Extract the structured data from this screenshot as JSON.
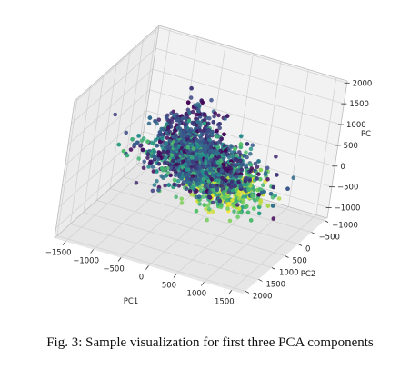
{
  "caption": "Fig. 3: Sample visualization for first three PCA components",
  "chart_data": {
    "type": "scatter",
    "projection": "3d",
    "title": "",
    "xlabel": "PC1",
    "ylabel": "PC2",
    "zlabel": "PC",
    "xlim": [
      -1700,
      1700
    ],
    "ylim": [
      -1100,
      2100
    ],
    "zlim": [
      -1250,
      2050
    ],
    "xticks": [
      -1500,
      -1000,
      -500,
      0,
      500,
      1000,
      1500
    ],
    "yticks": [
      -1000,
      -500,
      0,
      500,
      1000,
      1500,
      2000
    ],
    "zticks": [
      -1000,
      -500,
      0,
      500,
      1000,
      1500,
      2000
    ],
    "xtick_labels": [
      "−1500",
      "−1000",
      "−500",
      "0",
      "500",
      "1000",
      "1500"
    ],
    "ytick_labels": [
      "−1000",
      "−500",
      "0",
      "500",
      "1000",
      "1500",
      "2000"
    ],
    "ztick_labels": [
      "−1000",
      "−500",
      "0",
      "500",
      "1000",
      "1500",
      "2000"
    ],
    "grid": true,
    "colormap": "viridis",
    "colors": [
      "#440154",
      "#3b528b",
      "#21918c",
      "#5ec962",
      "#fde725"
    ],
    "point_count_note": "dense cloud of several thousand points",
    "series": [
      {
        "points_sample": [
          [
            -800,
            -300,
            -400,
            0.1
          ],
          [
            -600,
            -200,
            200,
            0.4
          ],
          [
            -400,
            100,
            600,
            0.2
          ],
          [
            -200,
            400,
            1100,
            0.05
          ],
          [
            0,
            600,
            1500,
            0.1
          ],
          [
            200,
            300,
            900,
            0.6
          ],
          [
            400,
            500,
            400,
            0.8
          ],
          [
            600,
            800,
            200,
            0.9
          ],
          [
            800,
            1100,
            100,
            0.85
          ],
          [
            1000,
            1300,
            300,
            0.95
          ],
          [
            300,
            -200,
            -600,
            0.3
          ],
          [
            -300,
            -500,
            -200,
            0.5
          ],
          [
            100,
            0,
            0,
            0.7
          ],
          [
            -500,
            200,
            400,
            0.15
          ],
          [
            500,
            200,
            -300,
            0.65
          ],
          [
            -700,
            0,
            -100,
            0.45
          ],
          [
            700,
            600,
            600,
            0.55
          ],
          [
            -100,
            700,
            1400,
            0.08
          ],
          [
            900,
            900,
            500,
            0.92
          ],
          [
            -900,
            -100,
            100,
            0.25
          ]
        ]
      }
    ]
  }
}
